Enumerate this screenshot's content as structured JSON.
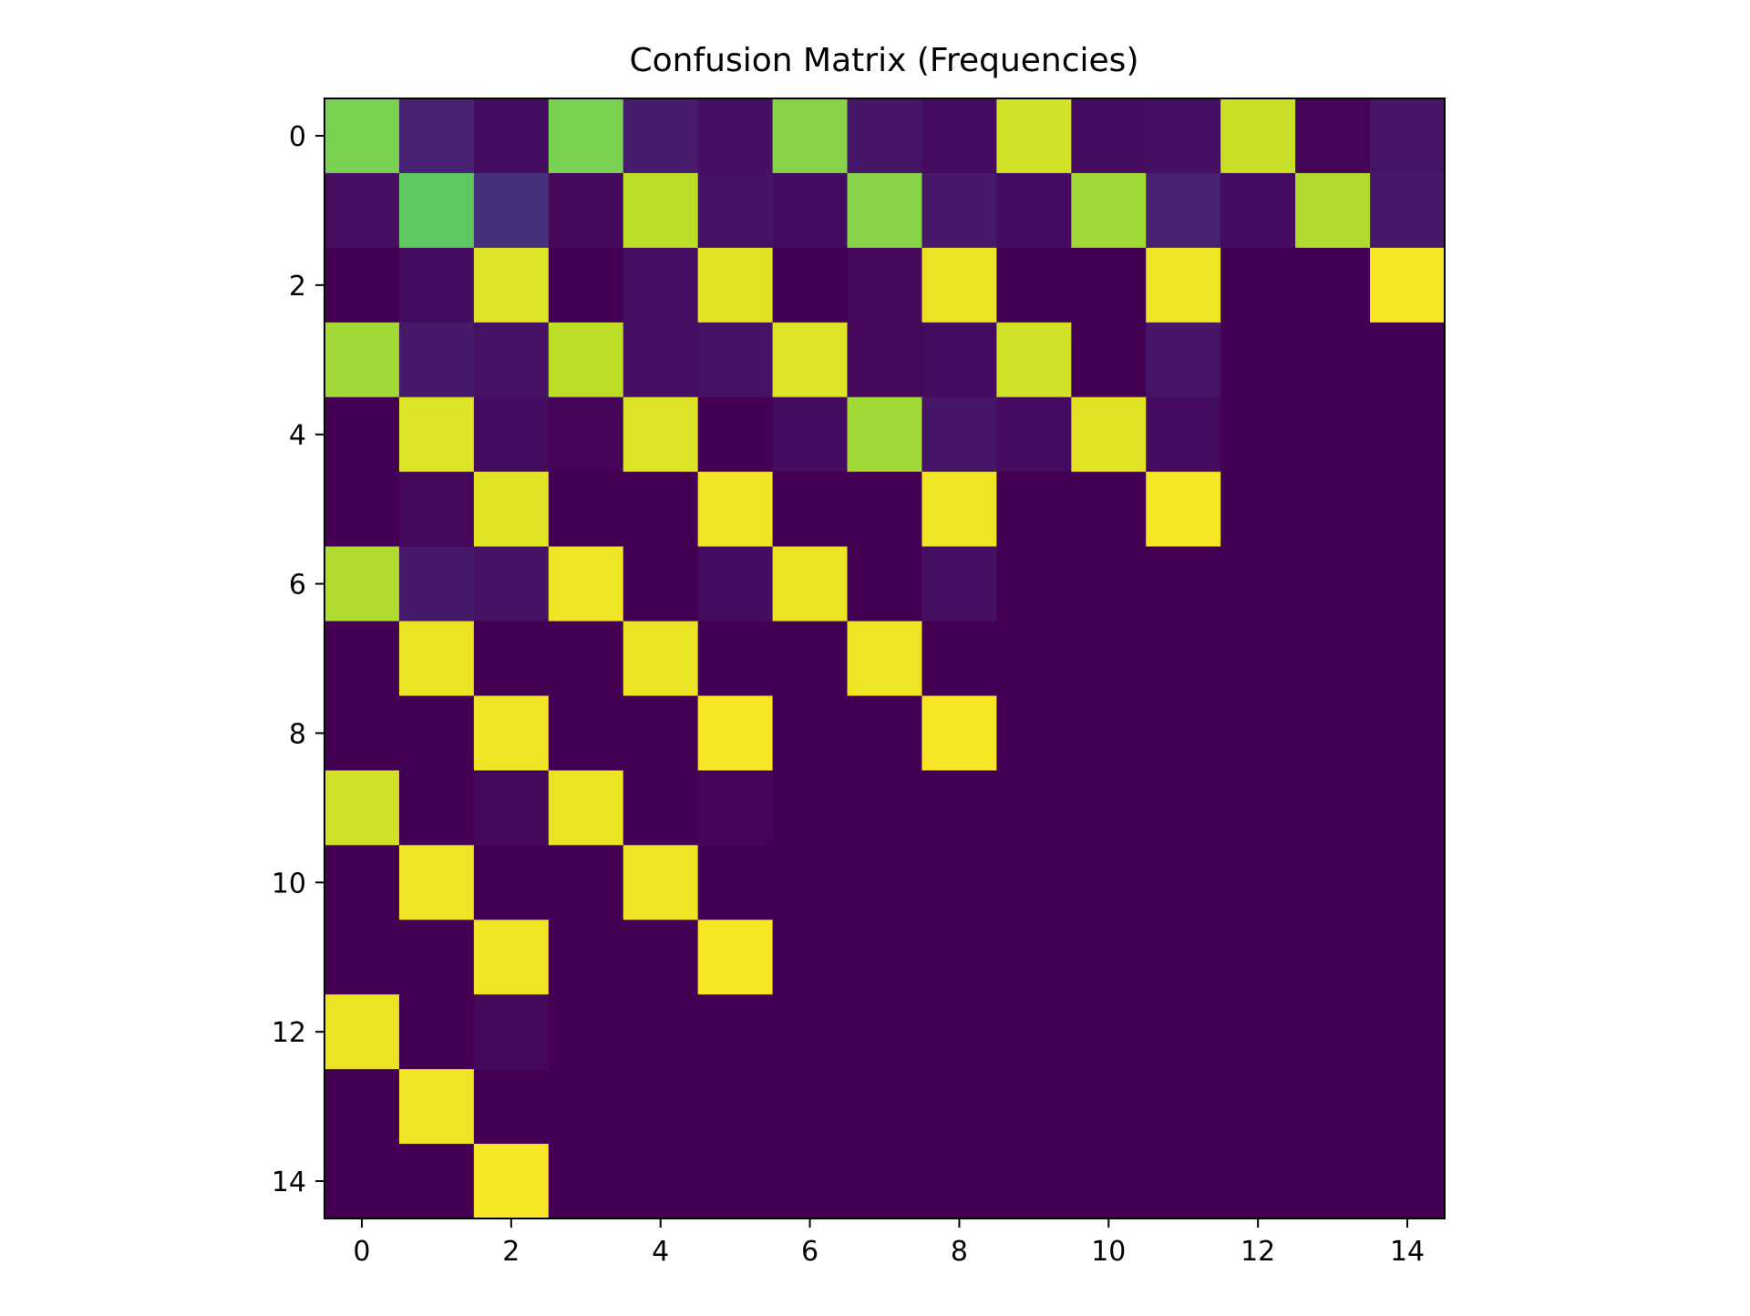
{
  "chart_data": {
    "type": "heatmap",
    "title": "Confusion Matrix (Frequencies)",
    "xlabel": "",
    "ylabel": "",
    "colormap": "viridis",
    "x_ticks": [
      0,
      2,
      4,
      6,
      8,
      10,
      12,
      14
    ],
    "y_ticks": [
      0,
      2,
      4,
      6,
      8,
      10,
      12,
      14
    ],
    "xlim": [
      -0.5,
      14.5
    ],
    "ylim": [
      14.5,
      -0.5
    ],
    "grid": false,
    "rows": 15,
    "cols": 15,
    "values": [
      [
        0.8,
        0.1,
        0.03,
        0.8,
        0.08,
        0.04,
        0.82,
        0.06,
        0.03,
        0.93,
        0.03,
        0.04,
        0.92,
        0.01,
        0.06
      ],
      [
        0.04,
        0.75,
        0.14,
        0.02,
        0.9,
        0.05,
        0.03,
        0.82,
        0.07,
        0.03,
        0.86,
        0.09,
        0.03,
        0.88,
        0.07
      ],
      [
        0.0,
        0.03,
        0.95,
        0.0,
        0.04,
        0.96,
        0.0,
        0.02,
        0.97,
        0.0,
        0.0,
        0.98,
        0.0,
        0.0,
        0.99
      ],
      [
        0.86,
        0.07,
        0.05,
        0.9,
        0.04,
        0.05,
        0.95,
        0.02,
        0.03,
        0.93,
        0.0,
        0.06,
        0.0,
        0.0,
        0.0
      ],
      [
        0.0,
        0.95,
        0.03,
        0.01,
        0.95,
        0.0,
        0.03,
        0.86,
        0.06,
        0.03,
        0.96,
        0.03,
        0.0,
        0.0,
        0.0
      ],
      [
        0.0,
        0.02,
        0.96,
        0.0,
        0.0,
        0.98,
        0.0,
        0.0,
        0.98,
        0.0,
        0.0,
        0.99,
        0.0,
        0.0,
        0.0
      ],
      [
        0.88,
        0.07,
        0.05,
        0.98,
        0.0,
        0.03,
        0.97,
        0.0,
        0.04,
        0.0,
        0.0,
        0.0,
        0.0,
        0.0,
        0.0
      ],
      [
        0.0,
        0.97,
        0.0,
        0.0,
        0.97,
        0.0,
        0.0,
        0.98,
        0.0,
        0.0,
        0.0,
        0.0,
        0.0,
        0.0,
        0.0
      ],
      [
        0.0,
        0.0,
        0.98,
        0.0,
        0.0,
        0.99,
        0.0,
        0.0,
        0.99,
        0.0,
        0.0,
        0.0,
        0.0,
        0.0,
        0.0
      ],
      [
        0.93,
        0.0,
        0.02,
        0.97,
        0.0,
        0.01,
        0.0,
        0.0,
        0.0,
        0.0,
        0.0,
        0.0,
        0.0,
        0.0,
        0.0
      ],
      [
        0.0,
        0.98,
        0.0,
        0.0,
        0.98,
        0.0,
        0.0,
        0.0,
        0.0,
        0.0,
        0.0,
        0.0,
        0.0,
        0.0,
        0.0
      ],
      [
        0.0,
        0.0,
        0.98,
        0.0,
        0.0,
        0.99,
        0.0,
        0.0,
        0.0,
        0.0,
        0.0,
        0.0,
        0.0,
        0.0,
        0.0
      ],
      [
        0.97,
        0.0,
        0.02,
        0.0,
        0.0,
        0.0,
        0.0,
        0.0,
        0.0,
        0.0,
        0.0,
        0.0,
        0.0,
        0.0,
        0.0
      ],
      [
        0.0,
        0.98,
        0.0,
        0.0,
        0.0,
        0.0,
        0.0,
        0.0,
        0.0,
        0.0,
        0.0,
        0.0,
        0.0,
        0.0,
        0.0
      ],
      [
        0.0,
        0.0,
        0.99,
        0.0,
        0.0,
        0.0,
        0.0,
        0.0,
        0.0,
        0.0,
        0.0,
        0.0,
        0.0,
        0.0,
        0.0
      ]
    ]
  }
}
